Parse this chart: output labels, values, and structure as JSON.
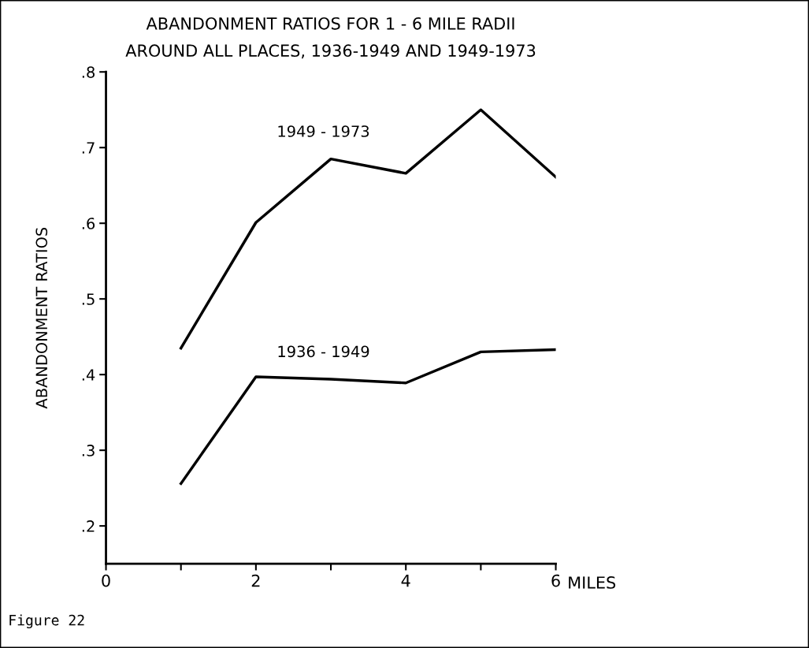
{
  "chart_data": {
    "type": "line",
    "title": "ABANDONMENT RATIOS FOR 1 - 6 MILE RADII\nAROUND ALL PLACES, 1936-1949 AND 1949-1973",
    "xlabel": "MILES",
    "ylabel": "ABANDONMENT RATIOS",
    "x": [
      1,
      2,
      3,
      4,
      5,
      6
    ],
    "series": [
      {
        "name": "1949 - 1973",
        "color": "#000000",
        "values": [
          0.435,
          0.601,
          0.685,
          0.666,
          0.75,
          0.661
        ]
      },
      {
        "name": "1936 - 1949",
        "color": "#000000",
        "values": [
          0.256,
          0.397,
          0.394,
          0.389,
          0.43,
          0.433
        ]
      }
    ],
    "xlim": [
      0,
      6
    ],
    "xticks": [
      0,
      {
        "value": 1,
        "label": null
      },
      2,
      {
        "value": 3,
        "label": null
      },
      4,
      {
        "value": 5,
        "label": null
      },
      6
    ],
    "ylim": [
      0.15,
      0.8
    ],
    "yticks": [
      {
        "value": 0.2,
        "label": ".2"
      },
      {
        "value": 0.3,
        "label": ".3"
      },
      {
        "value": 0.4,
        "label": ".4"
      },
      {
        "value": 0.5,
        "label": ".5"
      },
      {
        "value": 0.6,
        "label": ".6"
      },
      {
        "value": 0.7,
        "label": ".7"
      },
      {
        "value": 0.8,
        "label": ".8"
      }
    ],
    "annotations": [
      "Figure 22"
    ],
    "grid": false,
    "legend": false,
    "marker": "none",
    "line_style": "solid"
  }
}
